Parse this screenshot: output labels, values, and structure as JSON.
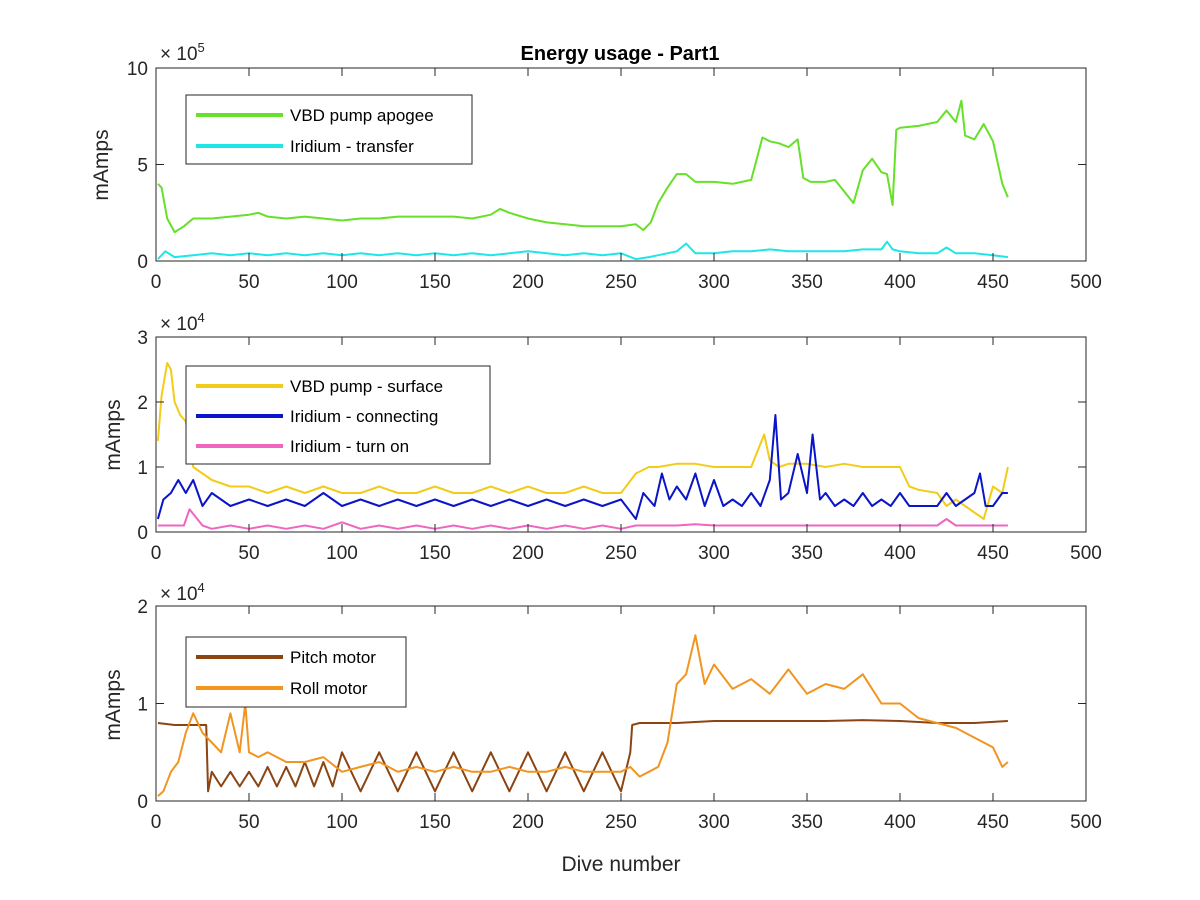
{
  "chart_data": [
    {
      "type": "line",
      "title": "Energy usage - Part1",
      "xlabel": "",
      "ylabel": "mAmps",
      "exponent_label": "× 10^5",
      "exponent_base": "× 10",
      "exponent_power": "5",
      "xlim": [
        0,
        500
      ],
      "ylim": [
        0,
        10
      ],
      "xticks": [
        "0",
        "50",
        "100",
        "150",
        "200",
        "250",
        "300",
        "350",
        "400",
        "450",
        "500"
      ],
      "yticks": [
        "0",
        "5",
        "10"
      ],
      "legend_position": "top-left",
      "series": [
        {
          "name": "VBD pump apogee",
          "color": "#66e028",
          "x": [
            1,
            3,
            6,
            10,
            15,
            20,
            30,
            40,
            50,
            55,
            60,
            70,
            80,
            90,
            100,
            110,
            120,
            130,
            140,
            150,
            160,
            170,
            180,
            185,
            190,
            200,
            210,
            220,
            230,
            240,
            250,
            258,
            262,
            266,
            270,
            275,
            280,
            285,
            290,
            300,
            310,
            320,
            323,
            326,
            330,
            335,
            340,
            345,
            348,
            352,
            360,
            365,
            370,
            375,
            380,
            385,
            390,
            393,
            396,
            398,
            400,
            410,
            420,
            425,
            430,
            433,
            435,
            440,
            445,
            450,
            455,
            458
          ],
          "y": [
            4.0,
            3.8,
            2.2,
            1.5,
            1.8,
            2.2,
            2.2,
            2.3,
            2.4,
            2.5,
            2.3,
            2.2,
            2.3,
            2.2,
            2.1,
            2.2,
            2.2,
            2.3,
            2.3,
            2.3,
            2.3,
            2.2,
            2.4,
            2.7,
            2.5,
            2.2,
            2.0,
            1.9,
            1.8,
            1.8,
            1.8,
            1.9,
            1.6,
            2.0,
            3.0,
            3.8,
            4.5,
            4.5,
            4.1,
            4.1,
            4.0,
            4.2,
            5.3,
            6.4,
            6.2,
            6.1,
            5.9,
            6.3,
            4.3,
            4.1,
            4.1,
            4.2,
            3.6,
            3.0,
            4.7,
            5.3,
            4.6,
            4.5,
            2.9,
            6.8,
            6.9,
            7.0,
            7.2,
            7.8,
            7.2,
            8.3,
            6.5,
            6.3,
            7.1,
            6.2,
            4.0,
            3.3
          ]
        },
        {
          "name": "Iridium - transfer",
          "color": "#1ee6e6",
          "x": [
            1,
            5,
            10,
            20,
            30,
            40,
            50,
            60,
            70,
            80,
            90,
            100,
            110,
            120,
            130,
            140,
            150,
            160,
            170,
            180,
            190,
            200,
            210,
            220,
            230,
            240,
            250,
            258,
            265,
            270,
            280,
            285,
            290,
            300,
            310,
            320,
            330,
            340,
            350,
            360,
            370,
            380,
            390,
            393,
            396,
            400,
            410,
            420,
            425,
            430,
            440,
            450,
            458
          ],
          "y": [
            0.1,
            0.5,
            0.2,
            0.3,
            0.4,
            0.3,
            0.4,
            0.3,
            0.4,
            0.3,
            0.4,
            0.3,
            0.4,
            0.3,
            0.4,
            0.3,
            0.4,
            0.3,
            0.4,
            0.3,
            0.4,
            0.5,
            0.4,
            0.3,
            0.4,
            0.3,
            0.4,
            0.1,
            0.2,
            0.3,
            0.5,
            0.9,
            0.4,
            0.4,
            0.5,
            0.5,
            0.6,
            0.5,
            0.5,
            0.5,
            0.5,
            0.6,
            0.6,
            1.0,
            0.6,
            0.5,
            0.4,
            0.4,
            0.7,
            0.4,
            0.4,
            0.3,
            0.2
          ]
        }
      ]
    },
    {
      "type": "line",
      "title": "",
      "xlabel": "",
      "ylabel": "mAmps",
      "exponent_label": "× 10^4",
      "exponent_base": "× 10",
      "exponent_power": "4",
      "xlim": [
        0,
        500
      ],
      "ylim": [
        0,
        3
      ],
      "xticks": [
        "0",
        "50",
        "100",
        "150",
        "200",
        "250",
        "300",
        "350",
        "400",
        "450",
        "500"
      ],
      "yticks": [
        "0",
        "1",
        "2",
        "3"
      ],
      "legend_position": "top-left",
      "series": [
        {
          "name": "VBD pump - surface",
          "color": "#f2cc1a",
          "x": [
            1,
            3,
            6,
            8,
            10,
            13,
            16,
            20,
            30,
            40,
            50,
            60,
            70,
            80,
            90,
            100,
            110,
            120,
            130,
            140,
            150,
            160,
            170,
            180,
            190,
            200,
            210,
            220,
            230,
            240,
            250,
            258,
            265,
            270,
            280,
            290,
            300,
            310,
            320,
            327,
            330,
            335,
            340,
            350,
            360,
            370,
            380,
            390,
            400,
            405,
            410,
            420,
            425,
            430,
            440,
            445,
            450,
            455,
            458
          ],
          "y": [
            1.4,
            2.1,
            2.6,
            2.5,
            2.0,
            1.8,
            1.7,
            1.0,
            0.8,
            0.7,
            0.7,
            0.6,
            0.7,
            0.6,
            0.7,
            0.6,
            0.6,
            0.7,
            0.6,
            0.6,
            0.7,
            0.6,
            0.6,
            0.7,
            0.6,
            0.7,
            0.6,
            0.6,
            0.7,
            0.6,
            0.6,
            0.9,
            1.0,
            1.0,
            1.05,
            1.05,
            1.0,
            1.0,
            1.0,
            1.5,
            1.1,
            1.0,
            1.05,
            1.05,
            1.0,
            1.05,
            1.0,
            1.0,
            1.0,
            0.7,
            0.65,
            0.6,
            0.4,
            0.5,
            0.3,
            0.2,
            0.7,
            0.6,
            1.0
          ]
        },
        {
          "name": "Iridium - connecting",
          "color": "#0a14c8",
          "x": [
            1,
            4,
            8,
            12,
            16,
            20,
            25,
            30,
            40,
            50,
            60,
            70,
            80,
            90,
            100,
            110,
            120,
            130,
            140,
            150,
            160,
            170,
            180,
            190,
            200,
            210,
            220,
            230,
            240,
            250,
            258,
            262,
            268,
            272,
            276,
            280,
            285,
            290,
            295,
            300,
            305,
            310,
            315,
            320,
            325,
            330,
            333,
            336,
            340,
            345,
            350,
            353,
            357,
            360,
            365,
            370,
            375,
            380,
            385,
            390,
            395,
            400,
            405,
            410,
            420,
            425,
            430,
            440,
            443,
            446,
            450,
            455,
            458
          ],
          "y": [
            0.2,
            0.5,
            0.6,
            0.8,
            0.6,
            0.8,
            0.4,
            0.6,
            0.4,
            0.5,
            0.4,
            0.5,
            0.4,
            0.6,
            0.4,
            0.5,
            0.4,
            0.5,
            0.4,
            0.5,
            0.4,
            0.5,
            0.4,
            0.5,
            0.4,
            0.5,
            0.4,
            0.5,
            0.4,
            0.5,
            0.2,
            0.6,
            0.4,
            0.9,
            0.5,
            0.7,
            0.5,
            0.9,
            0.4,
            0.8,
            0.4,
            0.5,
            0.4,
            0.6,
            0.4,
            0.8,
            1.8,
            0.5,
            0.6,
            1.2,
            0.6,
            1.5,
            0.5,
            0.6,
            0.4,
            0.5,
            0.4,
            0.6,
            0.4,
            0.5,
            0.4,
            0.6,
            0.4,
            0.4,
            0.4,
            0.6,
            0.4,
            0.6,
            0.9,
            0.4,
            0.4,
            0.6,
            0.6
          ]
        },
        {
          "name": "Iridium - turn on",
          "color": "#ee66c0",
          "x": [
            1,
            5,
            10,
            15,
            18,
            25,
            30,
            40,
            50,
            60,
            70,
            80,
            90,
            100,
            110,
            120,
            130,
            140,
            150,
            160,
            170,
            180,
            190,
            200,
            210,
            220,
            230,
            240,
            250,
            258,
            270,
            280,
            290,
            300,
            320,
            340,
            360,
            380,
            400,
            420,
            425,
            430,
            440,
            450,
            458
          ],
          "y": [
            0.1,
            0.1,
            0.1,
            0.1,
            0.35,
            0.1,
            0.05,
            0.1,
            0.05,
            0.1,
            0.05,
            0.1,
            0.05,
            0.15,
            0.05,
            0.1,
            0.05,
            0.1,
            0.05,
            0.1,
            0.05,
            0.1,
            0.05,
            0.1,
            0.05,
            0.1,
            0.05,
            0.1,
            0.05,
            0.1,
            0.1,
            0.1,
            0.12,
            0.1,
            0.1,
            0.1,
            0.1,
            0.1,
            0.1,
            0.1,
            0.2,
            0.1,
            0.1,
            0.1,
            0.1
          ]
        }
      ]
    },
    {
      "type": "line",
      "title": "",
      "xlabel": "Dive number",
      "ylabel": "mAmps",
      "exponent_label": "× 10^4",
      "exponent_base": "× 10",
      "exponent_power": "4",
      "xlim": [
        0,
        500
      ],
      "ylim": [
        0,
        2
      ],
      "xticks": [
        "0",
        "50",
        "100",
        "150",
        "200",
        "250",
        "300",
        "350",
        "400",
        "450",
        "500"
      ],
      "yticks": [
        "0",
        "1",
        "2"
      ],
      "legend_position": "top-left",
      "series": [
        {
          "name": "Pitch motor",
          "color": "#8b4513",
          "x": [
            1,
            10,
            20,
            27,
            28,
            30,
            35,
            40,
            45,
            50,
            55,
            60,
            65,
            70,
            75,
            80,
            85,
            90,
            95,
            100,
            110,
            120,
            130,
            140,
            150,
            160,
            170,
            180,
            190,
            200,
            210,
            220,
            230,
            240,
            250,
            255,
            256,
            260,
            270,
            280,
            300,
            320,
            340,
            360,
            380,
            400,
            420,
            440,
            458
          ],
          "y": [
            0.8,
            0.78,
            0.78,
            0.78,
            0.1,
            0.3,
            0.15,
            0.3,
            0.15,
            0.3,
            0.15,
            0.35,
            0.15,
            0.35,
            0.15,
            0.4,
            0.15,
            0.4,
            0.15,
            0.5,
            0.1,
            0.5,
            0.1,
            0.5,
            0.1,
            0.5,
            0.1,
            0.5,
            0.1,
            0.5,
            0.1,
            0.5,
            0.1,
            0.5,
            0.1,
            0.5,
            0.78,
            0.8,
            0.8,
            0.8,
            0.82,
            0.82,
            0.82,
            0.82,
            0.83,
            0.82,
            0.8,
            0.8,
            0.82
          ]
        },
        {
          "name": "Roll motor",
          "color": "#f29420",
          "x": [
            1,
            4,
            8,
            12,
            16,
            20,
            25,
            30,
            35,
            40,
            45,
            48,
            50,
            55,
            60,
            70,
            80,
            90,
            100,
            110,
            120,
            130,
            140,
            150,
            160,
            170,
            180,
            190,
            200,
            210,
            220,
            230,
            240,
            250,
            255,
            260,
            265,
            270,
            275,
            280,
            285,
            290,
            295,
            300,
            310,
            320,
            330,
            340,
            350,
            360,
            370,
            380,
            390,
            400,
            410,
            420,
            430,
            440,
            450,
            455,
            458
          ],
          "y": [
            0.05,
            0.1,
            0.3,
            0.4,
            0.7,
            0.9,
            0.7,
            0.6,
            0.5,
            0.9,
            0.5,
            1.0,
            0.5,
            0.45,
            0.5,
            0.4,
            0.4,
            0.45,
            0.3,
            0.35,
            0.4,
            0.3,
            0.35,
            0.3,
            0.35,
            0.3,
            0.3,
            0.35,
            0.3,
            0.3,
            0.35,
            0.3,
            0.3,
            0.3,
            0.35,
            0.25,
            0.3,
            0.35,
            0.6,
            1.2,
            1.3,
            1.7,
            1.2,
            1.4,
            1.15,
            1.25,
            1.1,
            1.35,
            1.1,
            1.2,
            1.15,
            1.3,
            1.0,
            1.0,
            0.85,
            0.8,
            0.75,
            0.65,
            0.55,
            0.35,
            0.4
          ]
        }
      ]
    }
  ]
}
